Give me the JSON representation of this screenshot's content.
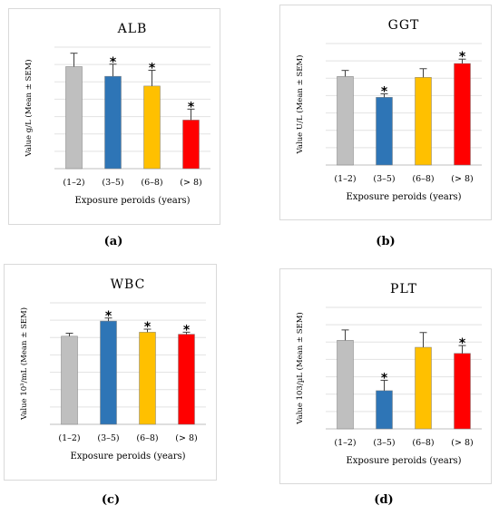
{
  "panel_captions": [
    "(a)",
    "(b)",
    "(c)",
    "(d)"
  ],
  "chart_data": [
    {
      "type": "bar",
      "title": "ALB",
      "ylabel": "Value g/L (Mean ± SEM)",
      "xlabel": "Exposure peroids (years)",
      "categories": [
        "(1–2)",
        "(3–5)",
        "(6–8)",
        "(> 8)"
      ],
      "values": [
        6.2,
        5.8,
        5.4,
        4.0
      ],
      "errors": [
        0.55,
        0.5,
        0.65,
        0.45
      ],
      "significant": [
        false,
        true,
        true,
        true
      ],
      "colors": [
        "#bfbfbf",
        "#2e75b6",
        "#ffc000",
        "#ff0000"
      ],
      "ylim": [
        2.0,
        7.0
      ],
      "grid": true
    },
    {
      "type": "bar",
      "title": "GGT",
      "ylabel": "Value U/L (Mean ± SEM)",
      "xlabel": "Exposure peroids (years)",
      "categories": [
        "(1–2)",
        "(3–5)",
        "(6–8)",
        "(> 8)"
      ],
      "values": [
        5.1,
        3.9,
        5.05,
        5.85
      ],
      "errors": [
        0.35,
        0.2,
        0.5,
        0.25
      ],
      "significant": [
        false,
        true,
        false,
        true
      ],
      "colors": [
        "#bfbfbf",
        "#2e75b6",
        "#ffc000",
        "#ff0000"
      ],
      "ylim": [
        0,
        7
      ],
      "grid": true
    },
    {
      "type": "bar",
      "title": "WBC",
      "ylabel": "Value 10³/mL (Mean ± SEM)",
      "xlabel": "Exposure peroids (years)",
      "categories": [
        "(1–2)",
        "(3–5)",
        "(6–8)",
        "(> 8)"
      ],
      "values": [
        4.35,
        5.1,
        4.55,
        4.45
      ],
      "errors": [
        0.15,
        0.15,
        0.15,
        0.1
      ],
      "significant": [
        false,
        true,
        true,
        true
      ],
      "colors": [
        "#bfbfbf",
        "#2e75b6",
        "#ffc000",
        "#ff0000"
      ],
      "ylim": [
        0,
        6
      ],
      "grid": true
    },
    {
      "type": "bar",
      "title": "PLT",
      "ylabel": "Value 103/µL (Mean ± SEM)",
      "xlabel": "Exposure peroids (years)",
      "categories": [
        "(1–2)",
        "(3–5)",
        "(6–8)",
        "(> 8)"
      ],
      "values": [
        5.1,
        2.2,
        4.7,
        4.35
      ],
      "errors": [
        0.6,
        0.6,
        0.85,
        0.45
      ],
      "significant": [
        false,
        true,
        false,
        true
      ],
      "colors": [
        "#bfbfbf",
        "#2e75b6",
        "#ffc000",
        "#ff0000"
      ],
      "ylim": [
        0,
        7
      ],
      "grid": true
    }
  ]
}
